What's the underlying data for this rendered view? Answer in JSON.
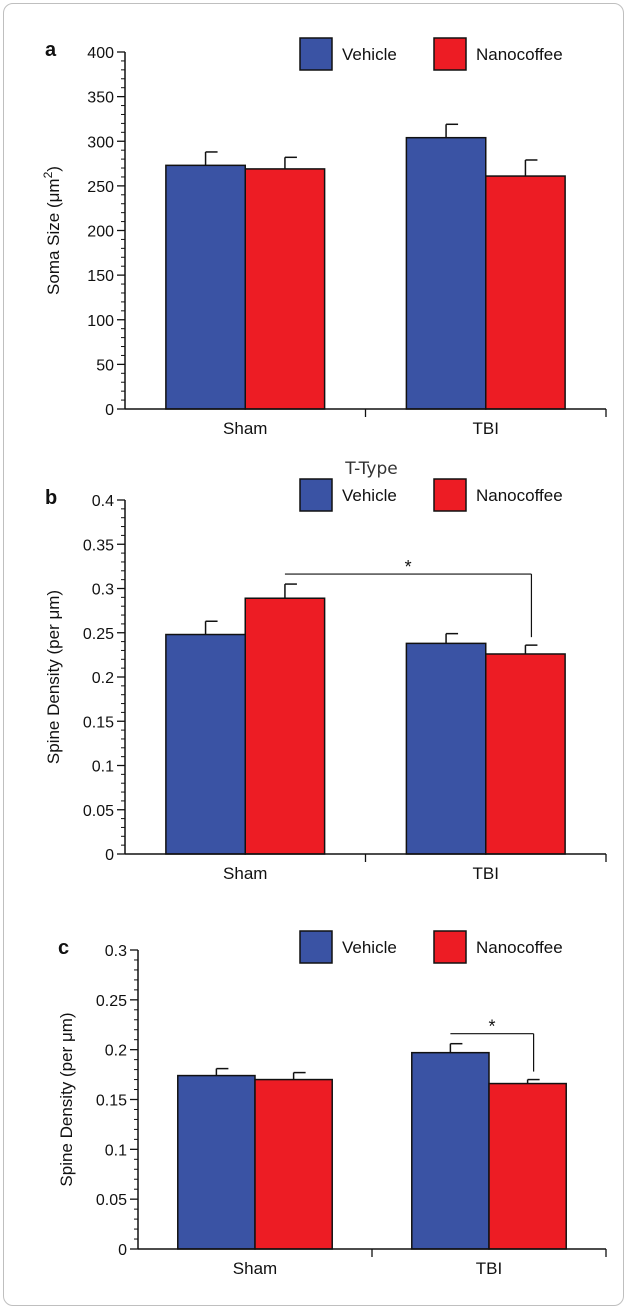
{
  "colors": {
    "vehicle": "#3a53a4",
    "nanocoffee": "#ed1c24",
    "axis": "#111111"
  },
  "chart_data": [
    {
      "panel": "a",
      "type": "bar",
      "title": "",
      "categories": [
        "Sham",
        "TBI"
      ],
      "ylabel": "Soma Size (μm²)",
      "ylabel_main": "Soma Size (μm",
      "ylabel_sup": "2",
      "ylabel_tail": ")",
      "ylim": [
        0,
        400
      ],
      "yticks": [
        "0",
        "50",
        "100",
        "150",
        "200",
        "250",
        "300",
        "350",
        "400"
      ],
      "minor_ticks_per_major": 4,
      "legend": {
        "placement": "top-right",
        "entries": [
          "Vehicle",
          "Nanocoffee"
        ]
      },
      "series": [
        {
          "name": "Vehicle",
          "values": [
            273,
            304
          ],
          "errors": [
            15,
            15
          ]
        },
        {
          "name": "Nanocoffee",
          "values": [
            269,
            261
          ],
          "errors": [
            13,
            18
          ]
        }
      ],
      "significance": []
    },
    {
      "panel": "b",
      "type": "bar",
      "title": "T-Type",
      "categories": [
        "Sham",
        "TBI"
      ],
      "ylabel": "Spine Density (per μm)",
      "ylim": [
        0,
        0.4
      ],
      "yticks": [
        "0",
        "0.05",
        "0.1",
        "0.15",
        "0.2",
        "0.25",
        "0.3",
        "0.35",
        "0.4"
      ],
      "minor_ticks_per_major": 4,
      "legend": {
        "placement": "top-right",
        "entries": [
          "Vehicle",
          "Nanocoffee"
        ]
      },
      "series": [
        {
          "name": "Vehicle",
          "values": [
            0.248,
            0.238
          ],
          "errors": [
            0.015,
            0.011
          ]
        },
        {
          "name": "Nanocoffee",
          "values": [
            0.289,
            0.226
          ],
          "errors": [
            0.016,
            0.01
          ]
        }
      ],
      "significance": [
        {
          "from": {
            "series": 1,
            "category": 0
          },
          "to": {
            "series": 1,
            "category": 1
          },
          "label": "*"
        }
      ]
    },
    {
      "panel": "c",
      "type": "bar",
      "title": "",
      "categories": [
        "Sham",
        "TBI"
      ],
      "ylabel": "Spine Density (per μm)",
      "ylim": [
        0,
        0.3
      ],
      "yticks": [
        "0",
        "0.05",
        "0.1",
        "0.15",
        "0.2",
        "0.25",
        "0.3"
      ],
      "minor_ticks_per_major": 4,
      "legend": {
        "placement": "top-right",
        "entries": [
          "Vehicle",
          "Nanocoffee"
        ]
      },
      "series": [
        {
          "name": "Vehicle",
          "values": [
            0.174,
            0.197
          ],
          "errors": [
            0.007,
            0.009
          ]
        },
        {
          "name": "Nanocoffee",
          "values": [
            0.17,
            0.166
          ],
          "errors": [
            0.007,
            0.004
          ]
        }
      ],
      "significance": [
        {
          "from": {
            "series": 0,
            "category": 1
          },
          "to": {
            "series": 1,
            "category": 1
          },
          "label": "*"
        }
      ]
    }
  ]
}
